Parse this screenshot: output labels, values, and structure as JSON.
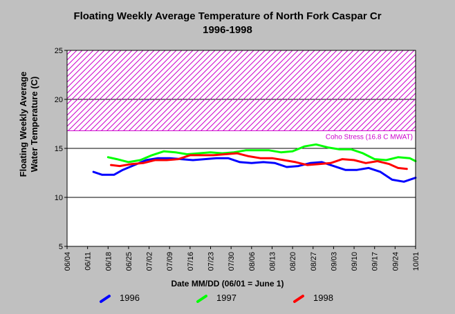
{
  "chart_data": {
    "type": "line",
    "title": "Floating Weekly Average Temperature of North Fork Caspar Cr",
    "subtitle": "1996-1998",
    "xlabel": "Date MM/DD (06/01 = June 1)",
    "ylabel_line1": "Floating Weekly Average",
    "ylabel_line2": "Water Temperature (C)",
    "ylim": [
      5,
      25
    ],
    "yticks": [
      5,
      10,
      15,
      20,
      25
    ],
    "xlim": [
      "06/04",
      "10/01"
    ],
    "xticks": [
      "06/04",
      "06/11",
      "06/18",
      "06/25",
      "07/02",
      "07/09",
      "07/16",
      "07/23",
      "07/30",
      "08/06",
      "08/13",
      "08/20",
      "08/27",
      "09/03",
      "09/10",
      "09/17",
      "09/24",
      "10/01"
    ],
    "grid": "horizontal",
    "threshold": {
      "label": "Coho Stress (16.8 C MWAT)",
      "from": 16.8,
      "to": 25,
      "color": "#cc00cc"
    },
    "series": [
      {
        "name": "1996",
        "color": "#0000ff",
        "x": [
          "06/13",
          "06/16",
          "06/20",
          "06/23",
          "06/27",
          "07/01",
          "07/05",
          "07/09",
          "07/13",
          "07/17",
          "07/21",
          "07/25",
          "07/29",
          "08/02",
          "08/06",
          "08/10",
          "08/14",
          "08/18",
          "08/22",
          "08/26",
          "08/30",
          "09/03",
          "09/07",
          "09/11",
          "09/15",
          "09/19",
          "09/23",
          "09/27",
          "10/01"
        ],
        "values": [
          12.6,
          12.3,
          12.3,
          12.8,
          13.3,
          13.8,
          14.0,
          14.0,
          13.9,
          13.8,
          13.9,
          14.0,
          14.0,
          13.6,
          13.5,
          13.6,
          13.5,
          13.1,
          13.2,
          13.5,
          13.6,
          13.2,
          12.8,
          12.8,
          13.0,
          12.6,
          11.8,
          11.6,
          12.0
        ]
      },
      {
        "name": "1997",
        "color": "#00ff00",
        "x": [
          "06/18",
          "06/21",
          "06/25",
          "06/29",
          "07/03",
          "07/07",
          "07/11",
          "07/15",
          "07/19",
          "07/23",
          "07/27",
          "07/31",
          "08/04",
          "08/08",
          "08/12",
          "08/16",
          "08/20",
          "08/24",
          "08/28",
          "09/01",
          "09/05",
          "09/09",
          "09/13",
          "09/17",
          "09/21",
          "09/25",
          "09/29",
          "10/01"
        ],
        "values": [
          14.1,
          13.9,
          13.6,
          13.8,
          14.3,
          14.7,
          14.6,
          14.4,
          14.5,
          14.6,
          14.5,
          14.6,
          14.8,
          14.8,
          14.8,
          14.6,
          14.7,
          15.2,
          15.4,
          15.1,
          14.9,
          14.9,
          14.5,
          13.9,
          13.8,
          14.1,
          14.0,
          13.7
        ]
      },
      {
        "name": "1998",
        "color": "#ff0000",
        "x": [
          "06/19",
          "06/22",
          "06/26",
          "06/30",
          "07/04",
          "07/08",
          "07/12",
          "07/16",
          "07/20",
          "07/24",
          "07/28",
          "08/01",
          "08/05",
          "08/09",
          "08/13",
          "08/17",
          "08/21",
          "08/25",
          "08/29",
          "09/02",
          "09/06",
          "09/10",
          "09/14",
          "09/18",
          "09/22",
          "09/25",
          "09/28"
        ],
        "values": [
          13.3,
          13.2,
          13.4,
          13.5,
          13.8,
          13.8,
          13.9,
          14.3,
          14.3,
          14.3,
          14.4,
          14.5,
          14.2,
          14.0,
          14.0,
          13.8,
          13.6,
          13.3,
          13.4,
          13.5,
          13.9,
          13.8,
          13.5,
          13.7,
          13.4,
          13.0,
          12.9
        ]
      }
    ]
  }
}
